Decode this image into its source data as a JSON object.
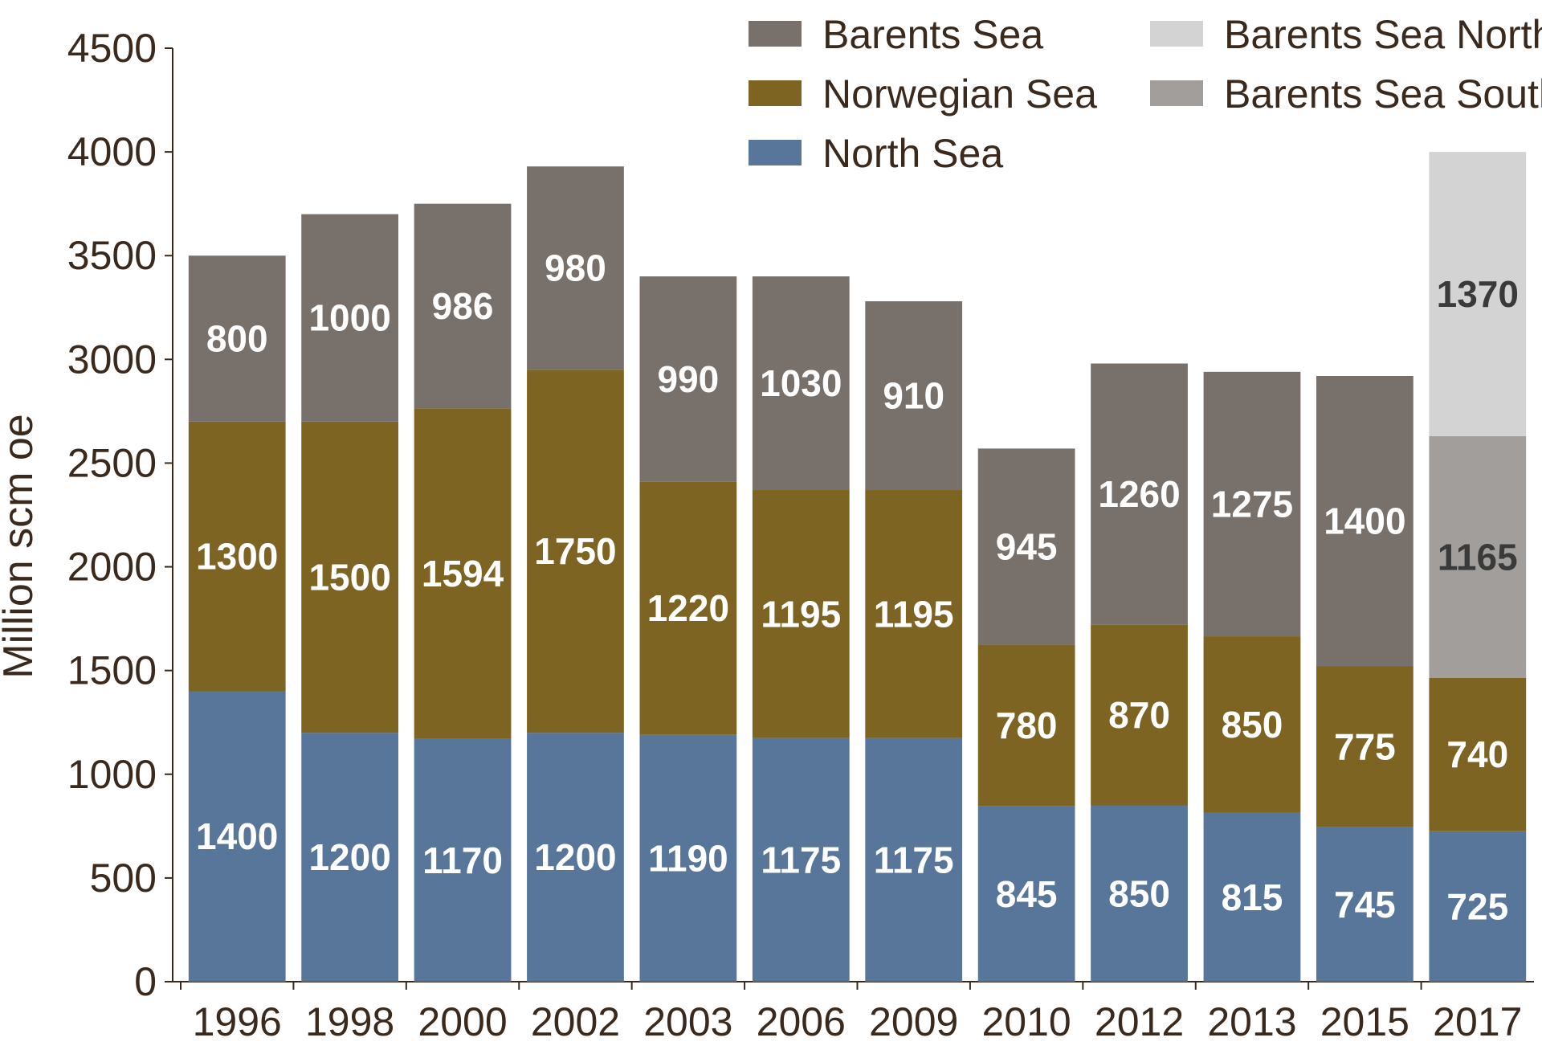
{
  "chart_data": {
    "type": "bar",
    "stacked": true,
    "title": "",
    "xlabel": "",
    "ylabel": "Million scm oe",
    "ylim": [
      0,
      4500
    ],
    "yticks": [
      0,
      500,
      1000,
      1500,
      2000,
      2500,
      3000,
      3500,
      4000,
      4500
    ],
    "grid": false,
    "legend_position": "top-right",
    "categories": [
      "1996",
      "1998",
      "2000",
      "2002",
      "2003",
      "2006",
      "2009",
      "2010",
      "2012",
      "2013",
      "2015",
      "2017"
    ],
    "series": [
      {
        "name": "North Sea",
        "color": "#58759a",
        "label_color": "#ffffff",
        "values": [
          1400,
          1200,
          1170,
          1200,
          1190,
          1175,
          1175,
          845,
          850,
          815,
          745,
          725
        ]
      },
      {
        "name": "Norwegian Sea",
        "color": "#7d6423",
        "label_color": "#ffffff",
        "values": [
          1300,
          1500,
          1594,
          1750,
          1220,
          1195,
          1195,
          780,
          870,
          850,
          775,
          740
        ]
      },
      {
        "name": "Barents Sea",
        "color": "#77706b",
        "label_color": "#ffffff",
        "values": [
          800,
          1000,
          986,
          980,
          990,
          1030,
          910,
          945,
          1260,
          1275,
          1400,
          null
        ]
      },
      {
        "name": "Barents Sea South",
        "color": "#a19e9b",
        "label_color": "#3a3a3a",
        "values": [
          null,
          null,
          null,
          null,
          null,
          null,
          null,
          null,
          null,
          null,
          null,
          1165
        ]
      },
      {
        "name": "Barents Sea North",
        "color": "#d3d3d3",
        "label_color": "#3a3a3a",
        "values": [
          null,
          null,
          null,
          null,
          null,
          null,
          null,
          null,
          null,
          null,
          null,
          1370
        ]
      }
    ],
    "legend": [
      {
        "name": "Barents Sea",
        "color": "#77706b"
      },
      {
        "name": "Norwegian Sea",
        "color": "#7d6423"
      },
      {
        "name": "North Sea",
        "color": "#58759a"
      },
      {
        "name": "Barents Sea North",
        "color": "#d3d3d3"
      },
      {
        "name": "Barents Sea South",
        "color": "#a19e9b"
      }
    ]
  }
}
